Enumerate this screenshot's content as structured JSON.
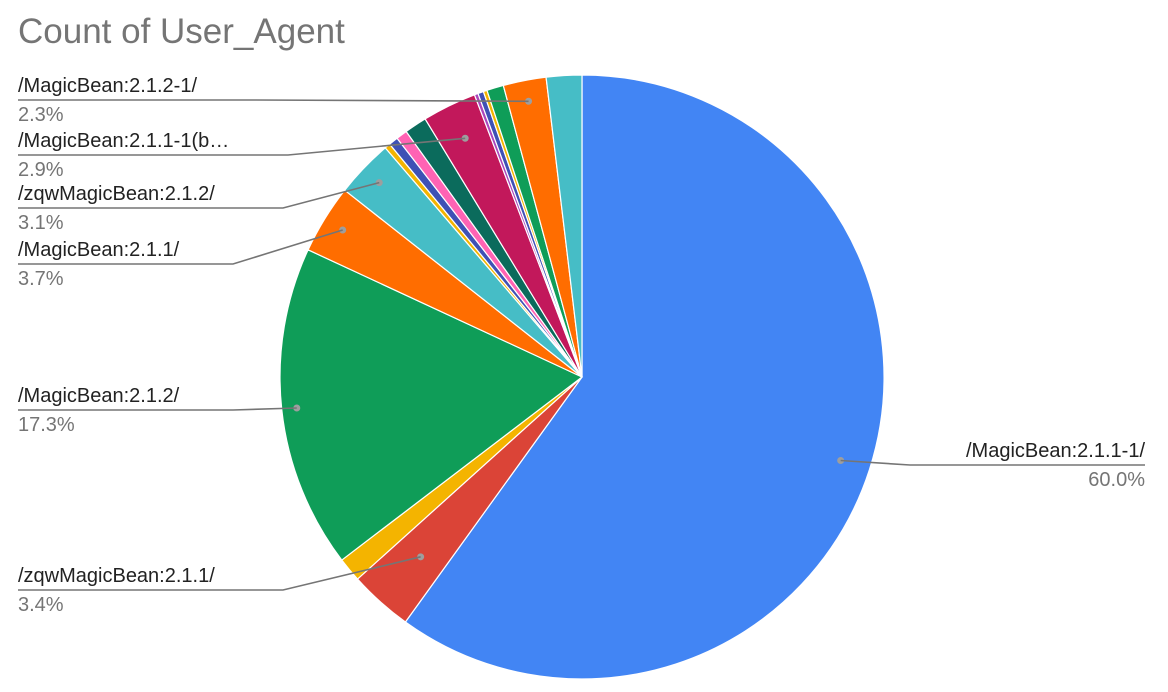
{
  "chart_data": {
    "type": "pie",
    "title": "Count of User_Agent",
    "slices": [
      {
        "name": "/MagicBean:2.1.1-1/",
        "value": 60.0,
        "color": "#4285f4",
        "label": "/MagicBean:2.1.1-1/",
        "pct": "60.0%"
      },
      {
        "name": "/zqwMagicBean:2.1.1/",
        "value": 3.4,
        "color": "#db4437",
        "label": "/zqwMagicBean:2.1.1/",
        "pct": "3.4%"
      },
      {
        "value": 1.3,
        "color": "#f4b400"
      },
      {
        "name": "/MagicBean:2.1.2/",
        "value": 17.3,
        "color": "#0f9d58",
        "label": "/MagicBean:2.1.2/",
        "pct": "17.3%"
      },
      {
        "name": "/MagicBean:2.1.1/",
        "value": 3.7,
        "color": "#ff6d00",
        "label": "/MagicBean:2.1.1/",
        "pct": "3.7%"
      },
      {
        "name": "/zqwMagicBean:2.1.2/",
        "value": 3.1,
        "color": "#46bdc6",
        "label": "/zqwMagicBean:2.1.2/",
        "pct": "3.1%"
      },
      {
        "value": 0.3,
        "color": "#f4b400"
      },
      {
        "value": 0.5,
        "color": "#3f51b5"
      },
      {
        "value": 0.6,
        "color": "#ff63b4"
      },
      {
        "value": 1.2,
        "color": "#0b6b5c"
      },
      {
        "name": "/MagicBean:2.1.1-1(b…",
        "value": 2.9,
        "color": "#c2185b",
        "label": "/MagicBean:2.1.1-1(b…",
        "pct": "2.9%"
      },
      {
        "value": 0.2,
        "color": "#ab47bc"
      },
      {
        "value": 0.3,
        "color": "#3f51b5"
      },
      {
        "value": 0.2,
        "color": "#f4b400"
      },
      {
        "value": 0.9,
        "color": "#0f9d58"
      },
      {
        "name": "/MagicBean:2.1.2-1/",
        "value": 2.3,
        "color": "#ff6d00",
        "label": "/MagicBean:2.1.2-1/",
        "pct": "2.3%"
      },
      {
        "value": 1.9,
        "color": "#46bdc6"
      }
    ],
    "legend": "labels-with-leader-lines"
  }
}
